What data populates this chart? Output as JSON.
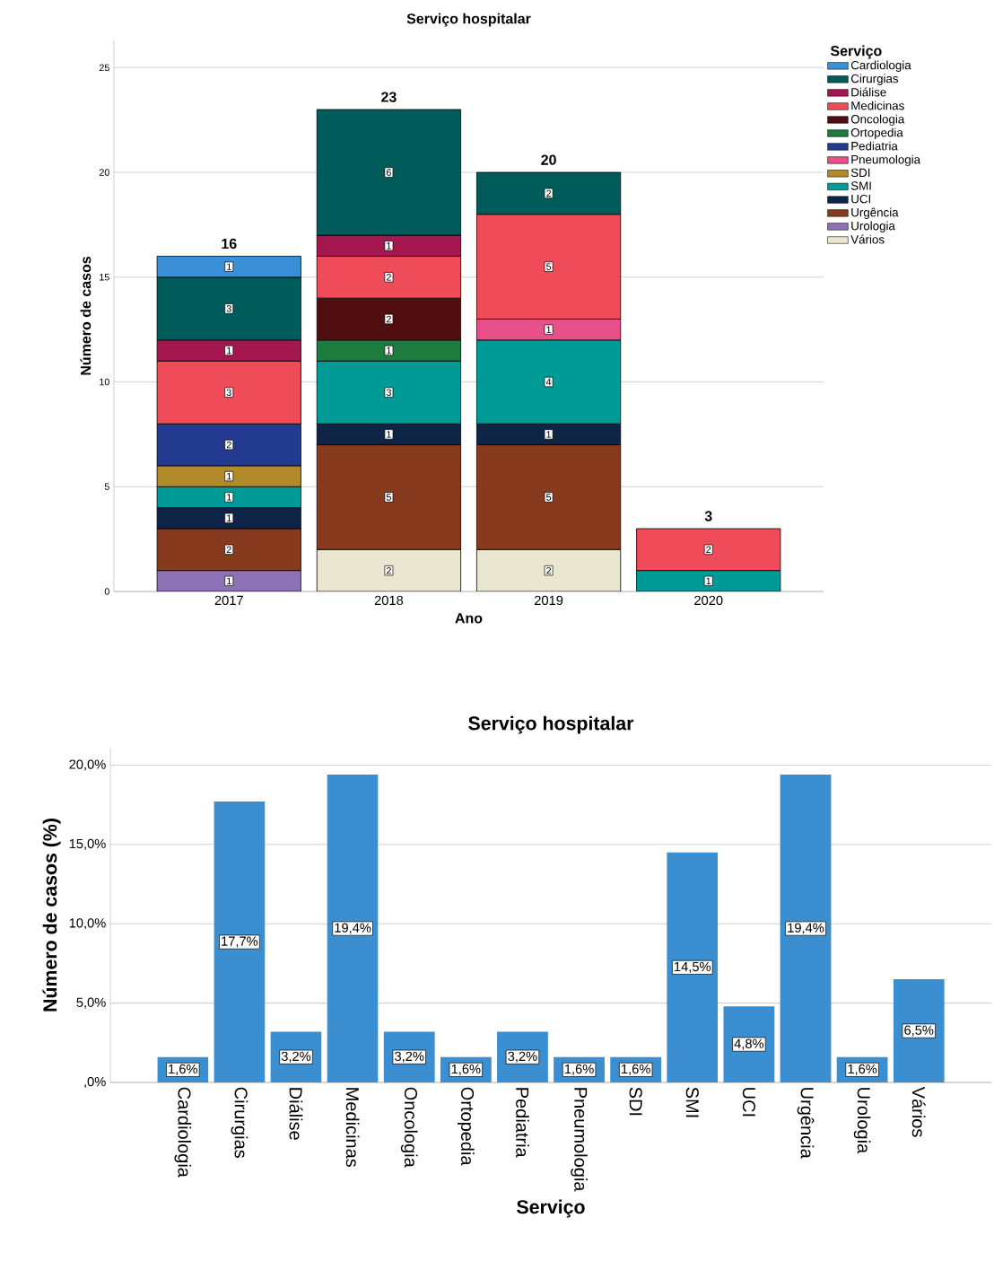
{
  "chart_data": [
    {
      "type": "bar",
      "title": "Serviço hospitalar",
      "xlabel": "Ano",
      "ylabel": "Número de casos",
      "legend_title": "Serviço",
      "legend": "right",
      "stacked": true,
      "data_labels": true,
      "grid": "y",
      "categories": [
        "2017",
        "2018",
        "2019",
        "2020"
      ],
      "ylim": [
        0,
        26.3
      ],
      "yticks": [
        0,
        5,
        10,
        15,
        20,
        25
      ],
      "totals": [
        "16",
        "23",
        "20",
        "3"
      ],
      "series": [
        {
          "name": "Vários",
          "color": "#ebe6d0",
          "values": [
            null,
            2,
            2,
            null
          ]
        },
        {
          "name": "Urologia",
          "color": "#8c72b5",
          "values": [
            1,
            null,
            null,
            null
          ]
        },
        {
          "name": "Urgência",
          "color": "#883a1e",
          "values": [
            2,
            5,
            5,
            null
          ]
        },
        {
          "name": "UCI",
          "color": "#0f2548",
          "values": [
            1,
            1,
            1,
            null
          ]
        },
        {
          "name": "SMI",
          "color": "#009b96",
          "values": [
            1,
            3,
            4,
            1
          ]
        },
        {
          "name": "SDI",
          "color": "#b38a2b",
          "values": [
            1,
            null,
            null,
            null
          ]
        },
        {
          "name": "Pneumologia",
          "color": "#e8508a",
          "values": [
            null,
            null,
            1,
            null
          ]
        },
        {
          "name": "Pediatria",
          "color": "#233b8e",
          "values": [
            2,
            null,
            null,
            null
          ]
        },
        {
          "name": "Ortopedia",
          "color": "#1e7b3e",
          "values": [
            null,
            1,
            null,
            null
          ]
        },
        {
          "name": "Oncologia",
          "color": "#520d11",
          "values": [
            null,
            2,
            null,
            null
          ]
        },
        {
          "name": "Medicinas",
          "color": "#ef4b58",
          "values": [
            3,
            2,
            5,
            2
          ]
        },
        {
          "name": "Diálise",
          "color": "#a2184f",
          "values": [
            1,
            1,
            null,
            null
          ]
        },
        {
          "name": "Cirurgias",
          "color": "#005c5a",
          "values": [
            3,
            6,
            2,
            null
          ]
        },
        {
          "name": "Cardiologia",
          "color": "#3a8fd6",
          "values": [
            1,
            null,
            null,
            null
          ]
        }
      ]
    },
    {
      "type": "bar",
      "title": "Serviço hospitalar",
      "xlabel": "Serviço",
      "ylabel": "Número de casos (%)",
      "grid": "y",
      "color": "#3b8ed0",
      "categories": [
        "Cardiologia",
        "Cirurgias",
        "Diálise",
        "Medicinas",
        "Oncologia",
        "Ortopedia",
        "Pediatria",
        "Pneumologia",
        "SDI",
        "SMI",
        "UCI",
        "Urgência",
        "Urologia",
        "Vários"
      ],
      "values": [
        1.6,
        17.7,
        3.2,
        19.4,
        3.2,
        1.6,
        3.2,
        1.6,
        1.6,
        14.5,
        4.8,
        19.4,
        1.6,
        6.5
      ],
      "value_labels": [
        "1,6%",
        "17,7%",
        "3,2%",
        "19,4%",
        "3,2%",
        "1,6%",
        "3,2%",
        "1,6%",
        "1,6%",
        "14,5%",
        "4,8%",
        "19,4%",
        "1,6%",
        "6,5%"
      ],
      "ylim": [
        0,
        21.1
      ],
      "yticks": [
        {
          "value": 0,
          "label": ",0%"
        },
        {
          "value": 5,
          "label": "5,0%"
        },
        {
          "value": 10,
          "label": "10,0%"
        },
        {
          "value": 15,
          "label": "15,0%"
        },
        {
          "value": 20,
          "label": "20,0%"
        }
      ]
    }
  ]
}
